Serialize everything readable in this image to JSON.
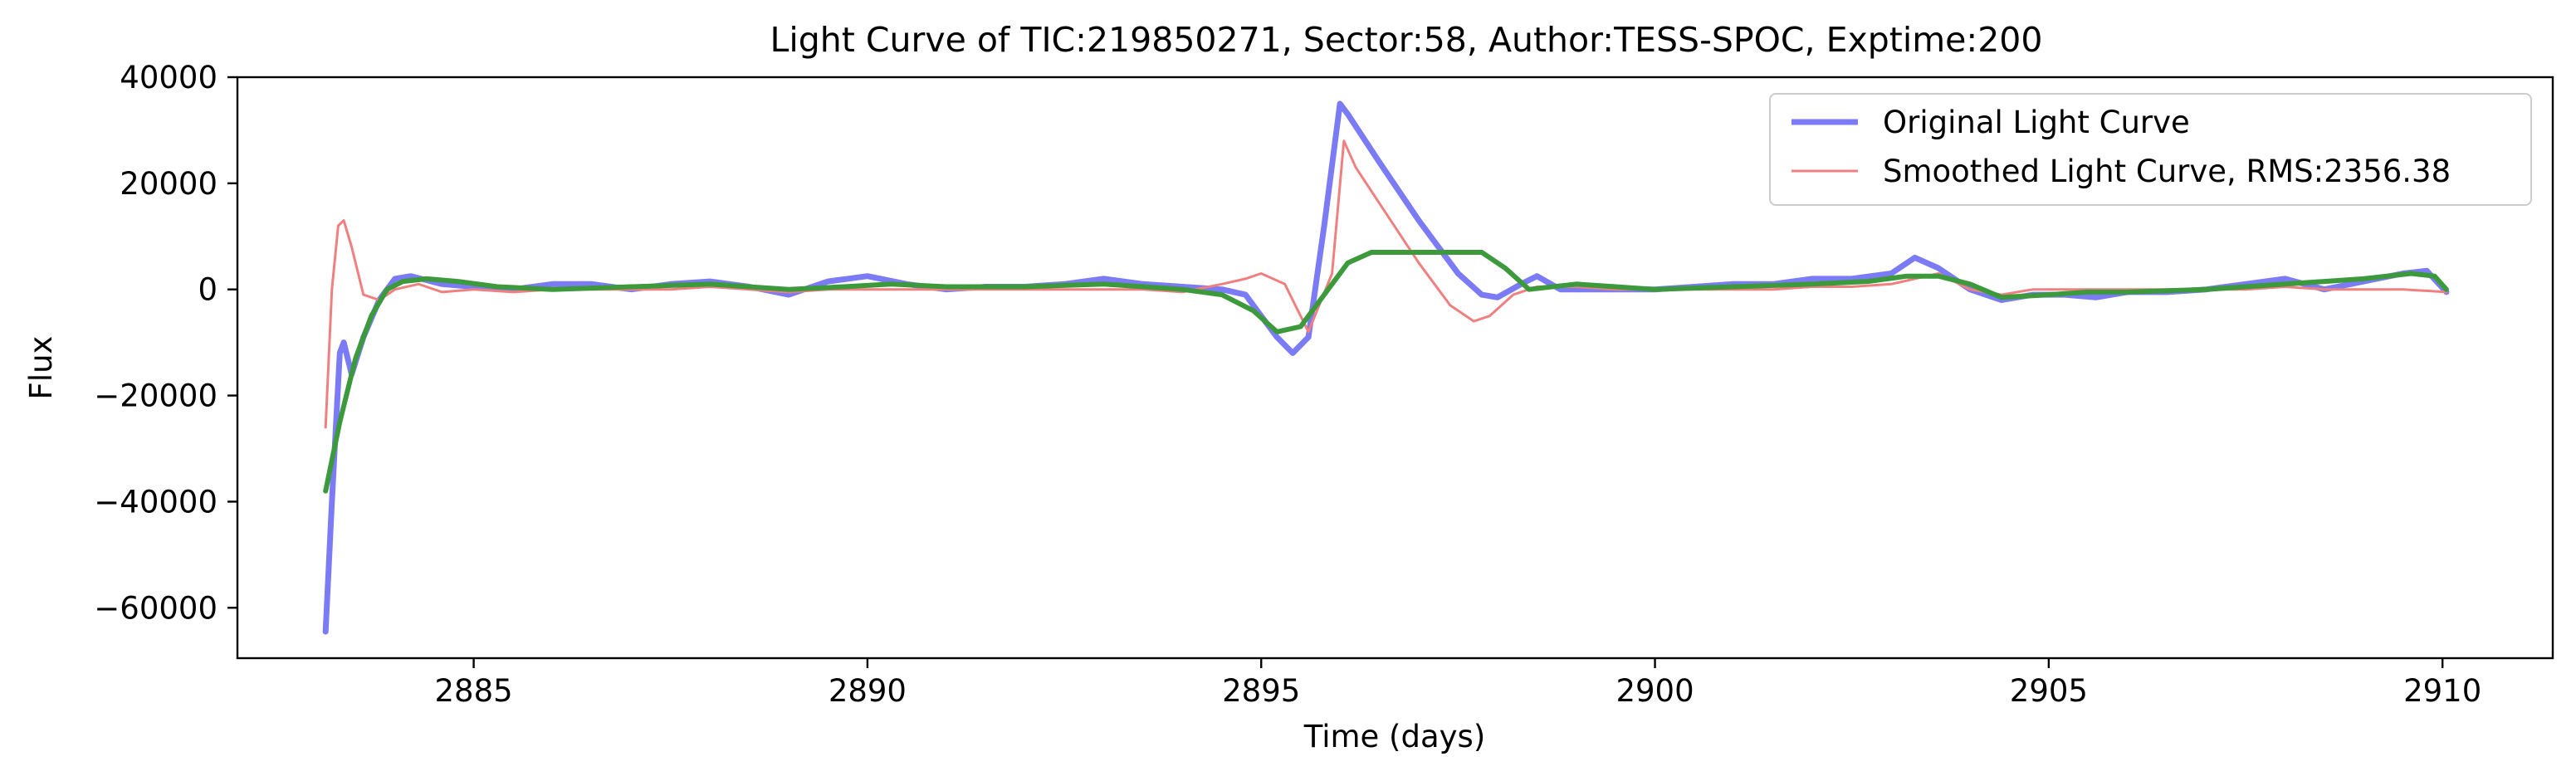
{
  "chart_data": {
    "type": "line",
    "title": "Light Curve of TIC:219850271, Sector:58, Author:TESS-SPOC, Exptime:200",
    "xlabel": "Time (days)",
    "ylabel": "Flux",
    "xlim": [
      2882.0,
      2911.4
    ],
    "ylim": [
      -69500,
      40000
    ],
    "xticks": [
      2885,
      2890,
      2895,
      2900,
      2905,
      2910
    ],
    "yticks": [
      40000,
      20000,
      0,
      -20000,
      -40000,
      -60000
    ],
    "xtick_labels": [
      "2885",
      "2890",
      "2895",
      "2900",
      "2905",
      "2910"
    ],
    "ytick_labels": [
      "40000",
      "20000",
      "0",
      "−20000",
      "−40000",
      "−60000"
    ],
    "grid": false,
    "legend_position": "top-right",
    "series": [
      {
        "name": "Original Light Curve",
        "color": "#7b7bf5",
        "x": [
          2883.12,
          2883.2,
          2883.3,
          2883.35,
          2883.45,
          2883.6,
          2883.8,
          2884.0,
          2884.2,
          2884.6,
          2885.0,
          2885.5,
          2886.0,
          2886.5,
          2887.0,
          2887.5,
          2888.0,
          2888.5,
          2889.0,
          2889.5,
          2890.0,
          2890.5,
          2891.0,
          2891.5,
          2892.0,
          2892.5,
          2893.0,
          2893.5,
          2894.0,
          2894.5,
          2894.8,
          2895.0,
          2895.2,
          2895.4,
          2895.6,
          2895.8,
          2896.0,
          2896.1,
          2896.5,
          2897.0,
          2897.5,
          2897.8,
          2898.0,
          2898.3,
          2898.5,
          2898.8,
          2899.0,
          2899.5,
          2900.0,
          2900.5,
          2901.0,
          2901.5,
          2902.0,
          2902.5,
          2903.0,
          2903.3,
          2903.6,
          2904.0,
          2904.4,
          2904.8,
          2905.2,
          2905.6,
          2906.0,
          2906.5,
          2907.0,
          2907.5,
          2908.0,
          2908.5,
          2909.0,
          2909.5,
          2909.8,
          2910.05
        ],
        "y": [
          -64500,
          -40000,
          -12000,
          -10000,
          -16000,
          -9000,
          -2000,
          2000,
          2500,
          1000,
          500,
          0,
          1000,
          1000,
          0,
          1000,
          1500,
          500,
          -1000,
          1500,
          2500,
          1000,
          0,
          500,
          500,
          1000,
          2000,
          1000,
          500,
          0,
          -1000,
          -5000,
          -9000,
          -12000,
          -9000,
          12000,
          35000,
          33000,
          24000,
          13000,
          3000,
          -1000,
          -1500,
          1000,
          2500,
          0,
          0,
          0,
          0,
          500,
          1000,
          1000,
          2000,
          2000,
          3000,
          6000,
          4000,
          0,
          -2000,
          -1000,
          -1000,
          -1500,
          -500,
          -500,
          0,
          1000,
          2000,
          0,
          1500,
          3000,
          3500,
          -500
        ]
      },
      {
        "name": "Smoothed Light Curve, RMS:2356.38",
        "color": "#f08080",
        "x": [
          2883.12,
          2883.2,
          2883.28,
          2883.35,
          2883.45,
          2883.6,
          2883.8,
          2884.0,
          2884.3,
          2884.6,
          2885.0,
          2885.5,
          2886.0,
          2886.5,
          2887.0,
          2887.5,
          2888.0,
          2888.5,
          2889.0,
          2889.5,
          2890.0,
          2890.5,
          2891.0,
          2891.5,
          2892.0,
          2892.5,
          2893.0,
          2893.5,
          2894.0,
          2894.5,
          2894.8,
          2895.0,
          2895.3,
          2895.6,
          2895.9,
          2896.05,
          2896.2,
          2896.6,
          2897.0,
          2897.4,
          2897.7,
          2897.9,
          2898.2,
          2898.5,
          2899.0,
          2899.5,
          2900.0,
          2900.5,
          2901.0,
          2901.5,
          2902.0,
          2902.5,
          2903.0,
          2903.3,
          2903.6,
          2904.0,
          2904.4,
          2904.8,
          2905.2,
          2905.6,
          2906.0,
          2906.5,
          2907.0,
          2907.5,
          2908.0,
          2908.5,
          2909.0,
          2909.5,
          2910.05
        ],
        "y": [
          -26000,
          0,
          12000,
          13000,
          8000,
          -1000,
          -2000,
          0,
          1000,
          -500,
          0,
          -500,
          0,
          0,
          0,
          0,
          500,
          0,
          -500,
          0,
          0,
          0,
          0,
          0,
          0,
          0,
          0,
          0,
          -500,
          1000,
          2000,
          3000,
          1000,
          -8000,
          3000,
          28000,
          23000,
          14000,
          5000,
          -3000,
          -6000,
          -5000,
          -1000,
          500,
          500,
          0,
          0,
          0,
          0,
          0,
          500,
          500,
          1000,
          2000,
          3000,
          0,
          -1000,
          0,
          0,
          0,
          0,
          0,
          0,
          0,
          500,
          0,
          0,
          0,
          -500
        ]
      },
      {
        "name": "",
        "color": "#3c9a3c",
        "x": [
          2883.12,
          2883.3,
          2883.5,
          2883.7,
          2883.9,
          2884.1,
          2884.4,
          2884.8,
          2885.3,
          2886.0,
          2887.0,
          2888.0,
          2889.0,
          2889.7,
          2890.3,
          2891.0,
          2892.0,
          2893.0,
          2894.0,
          2894.5,
          2894.9,
          2895.2,
          2895.5,
          2895.8,
          2896.1,
          2896.4,
          2897.0,
          2897.5,
          2897.8,
          2898.1,
          2898.4,
          2899.0,
          2899.5,
          2900.0,
          2901.0,
          2902.0,
          2902.7,
          2903.2,
          2903.6,
          2904.0,
          2904.4,
          2905.0,
          2905.5,
          2906.0,
          2907.0,
          2908.0,
          2909.0,
          2909.6,
          2909.9,
          2910.05
        ],
        "y": [
          -38000,
          -25000,
          -13000,
          -5000,
          0,
          1500,
          2000,
          1500,
          500,
          0,
          500,
          1000,
          0,
          500,
          1000,
          500,
          500,
          1000,
          0,
          -1000,
          -4000,
          -8000,
          -7000,
          -1000,
          5000,
          7000,
          7000,
          7000,
          7000,
          4000,
          0,
          1000,
          500,
          0,
          500,
          1000,
          1500,
          2500,
          2500,
          1000,
          -1500,
          -1000,
          -500,
          -500,
          0,
          1000,
          2000,
          3000,
          2500,
          0
        ]
      }
    ]
  }
}
